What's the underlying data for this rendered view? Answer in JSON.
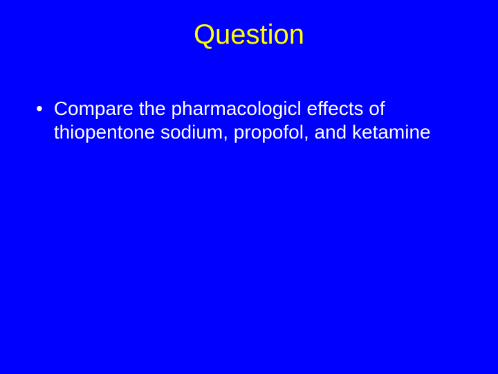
{
  "slide": {
    "title": "Question",
    "background_color": "#0000ff",
    "title_color": "#ffff00",
    "body_text_color": "#ffffff",
    "title_fontsize": 40,
    "body_fontsize": 28,
    "bullets": [
      {
        "marker": "•",
        "text": "Compare the pharmacologicl effects of thiopentone sodium, propofol, and ketamine"
      }
    ]
  }
}
